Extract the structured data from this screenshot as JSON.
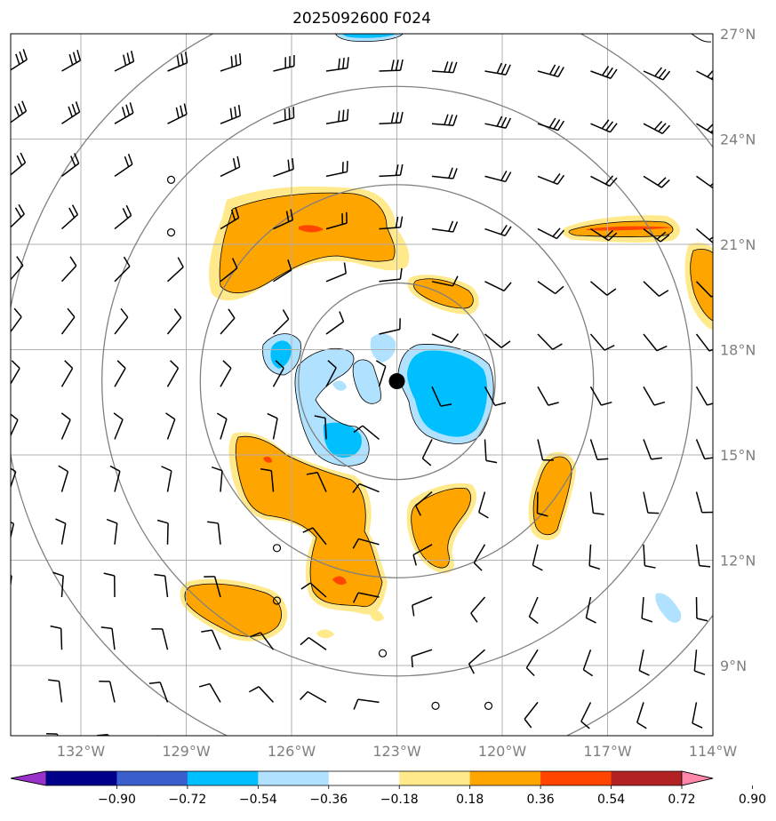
{
  "title": "2025092600 F024",
  "map": {
    "lon_range": [
      -134.0,
      -114.0
    ],
    "lat_range": [
      7.0,
      27.0
    ],
    "lon_ticks": [
      "132°W",
      "129°W",
      "126°W",
      "123°W",
      "120°W",
      "117°W",
      "114°W"
    ],
    "lat_ticks": [
      "27°N",
      "24°N",
      "21°N",
      "18°N",
      "15°N",
      "12°N",
      "9°N"
    ],
    "storm_center": [
      -123.0,
      17.1
    ],
    "range_rings_deg": [
      2.8,
      5.6,
      8.4,
      11.2
    ]
  },
  "colorbar": {
    "labels": [
      "−0.90",
      "−0.72",
      "−0.54",
      "−0.36",
      "−0.18",
      "0.18",
      "0.36",
      "0.54",
      "0.72",
      "0.90"
    ],
    "colors": {
      "under": "#9932cc",
      "bins": [
        "#00008b",
        "#3a5fcd",
        "#00bfff",
        "#b0e2ff",
        "#ffffff",
        "#ffe98a",
        "#ffa500",
        "#ff4500",
        "#b22222"
      ],
      "over": "#ff88aa"
    }
  }
}
